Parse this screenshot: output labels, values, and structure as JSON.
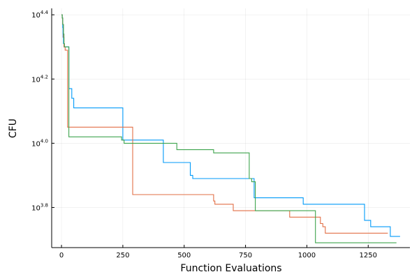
{
  "chart_data": {
    "type": "line",
    "step": true,
    "title": "",
    "xlabel": "Function Evaluations",
    "ylabel": "CFU",
    "y_scale": "log10",
    "grid": true,
    "legend": "none",
    "xlim": [
      -40,
      1420
    ],
    "ylim_log10": [
      3.675,
      4.42
    ],
    "x_ticks": [
      0,
      250,
      500,
      750,
      1000,
      1250
    ],
    "y_ticks": [
      {
        "base": "10",
        "exponent": "3.8",
        "log10": 3.8
      },
      {
        "base": "10",
        "exponent": "4.0",
        "log10": 4.0
      },
      {
        "base": "10",
        "exponent": "4.2",
        "log10": 4.2
      },
      {
        "base": "10",
        "exponent": "4.4",
        "log10": 4.4
      }
    ],
    "series": [
      {
        "color": "#009af9",
        "x": [
          0,
          3,
          5,
          6,
          8,
          10,
          12,
          25,
          30,
          42,
          50,
          175,
          250,
          260,
          410,
          415,
          525,
          535,
          780,
          785,
          980,
          985,
          1225,
          1235,
          1260,
          1340,
          1380
        ],
        "log10y": [
          4.4,
          4.39,
          4.36,
          4.33,
          4.31,
          4.3,
          4.3,
          4.3,
          4.17,
          4.14,
          4.11,
          4.11,
          4.01,
          4.01,
          4.01,
          3.94,
          3.9,
          3.89,
          3.89,
          3.83,
          3.83,
          3.81,
          3.81,
          3.76,
          3.74,
          3.71,
          3.71
        ]
      },
      {
        "color": "#e26f46",
        "x": [
          0,
          3,
          5,
          8,
          10,
          15,
          22,
          25,
          285,
          290,
          620,
          625,
          700,
          930,
          1055,
          1065,
          1075,
          1330
        ],
        "log10y": [
          4.4,
          4.39,
          4.37,
          4.33,
          4.3,
          4.29,
          4.29,
          4.05,
          4.05,
          3.84,
          3.82,
          3.81,
          3.79,
          3.77,
          3.75,
          3.74,
          3.72,
          3.72
        ]
      },
      {
        "color": "#3da44d",
        "x": [
          0,
          3,
          5,
          8,
          10,
          12,
          15,
          28,
          30,
          220,
          225,
          245,
          255,
          470,
          620,
          765,
          775,
          790,
          1030,
          1035,
          1365
        ],
        "log10y": [
          4.4,
          4.39,
          4.37,
          4.34,
          4.31,
          4.3,
          4.3,
          4.3,
          4.02,
          4.02,
          4.02,
          4.01,
          4.0,
          3.98,
          3.97,
          3.89,
          3.88,
          3.79,
          3.79,
          3.69,
          3.69
        ]
      }
    ]
  }
}
